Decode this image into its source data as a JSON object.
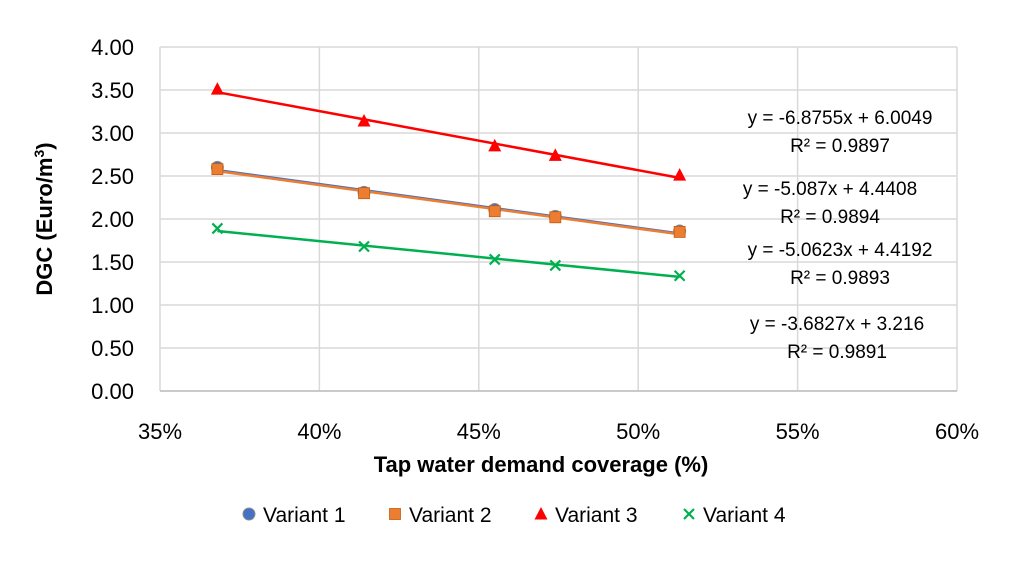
{
  "chart_data": {
    "type": "scatter",
    "title": "",
    "xlabel": "Tap water demand coverage (%)",
    "ylabel_main": "DGC (Euro/m",
    "ylabel_sup": "3",
    "ylabel_close": ")",
    "xlim": [
      0.35,
      0.6
    ],
    "ylim": [
      0.0,
      4.0
    ],
    "x_ticks": [
      0.35,
      0.4,
      0.45,
      0.5,
      0.55,
      0.6
    ],
    "x_tick_labels": [
      "35%",
      "40%",
      "45%",
      "50%",
      "55%",
      "60%"
    ],
    "y_ticks": [
      0,
      0.5,
      1,
      1.5,
      2,
      2.5,
      3,
      3.5,
      4
    ],
    "y_tick_labels": [
      "0.00",
      "0.50",
      "1.00",
      "1.50",
      "2.00",
      "2.50",
      "3.00",
      "3.50",
      "4.00"
    ],
    "grid": true,
    "legend_position": "bottom",
    "series": [
      {
        "name": "Variant 1",
        "marker": "circle",
        "color": "#4472C4",
        "line_color": "#4472C4",
        "x": [
          0.368,
          0.414,
          0.455,
          0.474,
          0.513
        ],
        "y": [
          2.6,
          2.31,
          2.11,
          2.03,
          1.86
        ],
        "trend": {
          "slope": -5.087,
          "intercept": 4.4408
        },
        "equation": "y = -5.087x + 4.4408",
        "r2": "R² = 0.9894"
      },
      {
        "name": "Variant 2",
        "marker": "square",
        "color": "#ED7D31",
        "line_color": "#ED7D31",
        "x": [
          0.368,
          0.414,
          0.455,
          0.474,
          0.513
        ],
        "y": [
          2.58,
          2.3,
          2.09,
          2.02,
          1.85
        ],
        "trend": {
          "slope": -5.0623,
          "intercept": 4.4192
        },
        "equation": "y = -5.0623x + 4.4192",
        "r2": "R² = 0.9893"
      },
      {
        "name": "Variant 3",
        "marker": "triangle",
        "color": "#FF0000",
        "line_color": "#FF0000",
        "x": [
          0.368,
          0.414,
          0.455,
          0.474,
          0.513
        ],
        "y": [
          3.51,
          3.14,
          2.85,
          2.74,
          2.51
        ],
        "trend": {
          "slope": -6.8755,
          "intercept": 6.0049
        },
        "equation": "y = -6.8755x + 6.0049",
        "r2": "R² = 0.9897"
      },
      {
        "name": "Variant 4",
        "marker": "x",
        "color": "#00B050",
        "line_color": "#00B050",
        "x": [
          0.368,
          0.414,
          0.455,
          0.474,
          0.513
        ],
        "y": [
          1.89,
          1.68,
          1.53,
          1.46,
          1.34
        ],
        "trend": {
          "slope": -3.6827,
          "intercept": 3.216
        },
        "equation": "y = -3.6827x + 3.216",
        "r2": "R² = 0.9891"
      }
    ],
    "equation_order": [
      "Variant 3",
      "Variant 1",
      "Variant 2",
      "Variant 4"
    ]
  }
}
